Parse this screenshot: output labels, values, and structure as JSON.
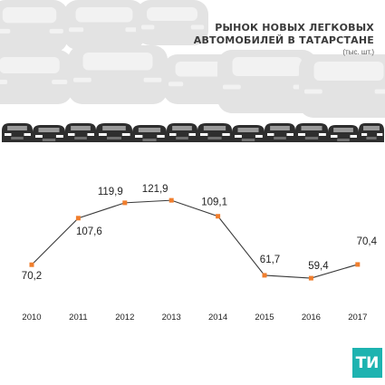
{
  "title_lines": [
    "РЫНОК НОВЫХ ЛЕГКОВЫХ",
    "АВТОМОБИЛЕЙ В ТАТАРСТАНЕ"
  ],
  "unit": "(тыс. шт.)",
  "logo_text": "ТИ",
  "colors": {
    "line": "#3a3a3a",
    "marker": "#f07e2d",
    "cars_background": "#e3e3e3",
    "cars_foreground": "#2e2e2e",
    "logo": "#1db3b0",
    "text": "#222222"
  },
  "chart_data": {
    "type": "line",
    "categories": [
      "2010",
      "2011",
      "2012",
      "2013",
      "2014",
      "2015",
      "2016",
      "2017"
    ],
    "category_labels": [
      "2010",
      "2011",
      "2012",
      "2013",
      "2014",
      "2015",
      "2016",
      "2017"
    ],
    "values": [
      70.2,
      107.6,
      119.9,
      121.9,
      109.1,
      61.7,
      59.4,
      70.4
    ],
    "value_labels": [
      "70,2",
      "107,6",
      "119,9",
      "121,9",
      "109,1",
      "61,7",
      "59,4",
      "70,4"
    ],
    "ylim": [
      50,
      130
    ],
    "grid": false,
    "legend": "none"
  }
}
